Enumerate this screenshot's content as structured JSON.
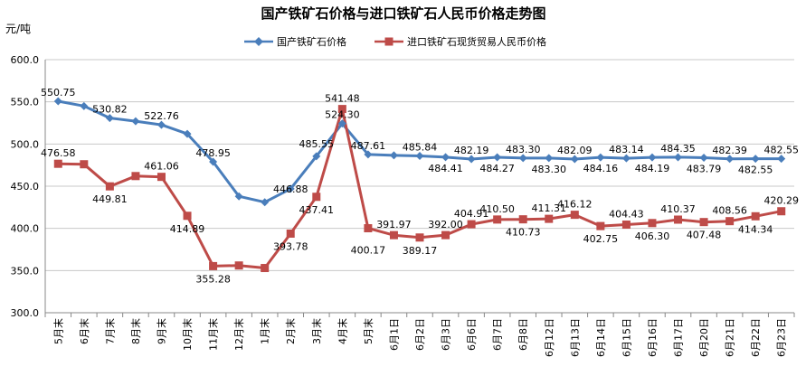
{
  "chart_data": {
    "type": "line",
    "title": "国产铁矿石价格与进口铁矿石人民币价格走势图",
    "ylabel": "元/吨",
    "xlabel": "",
    "ylim": [
      300,
      600
    ],
    "yticks": [
      "300.0",
      "350.0",
      "400.0",
      "450.0",
      "500.0",
      "550.0",
      "600.0"
    ],
    "grid": true,
    "legend_position": "top",
    "categories": [
      "5月末",
      "6月末",
      "7月末",
      "8月末",
      "9月末",
      "10月末",
      "11月末",
      "12月末",
      "1月末",
      "2月末",
      "3月末",
      "4月末",
      "5月末",
      "6月1日",
      "6月2日",
      "6月3日",
      "6月6日",
      "6月7日",
      "6月8日",
      "6月12日",
      "6月13日",
      "6月14日",
      "6月15日",
      "6月16日",
      "6月17日",
      "6月20日",
      "6月21日",
      "6月22日",
      "6月23日"
    ],
    "series": [
      {
        "name": "国产铁矿石价格",
        "color": "#4a7ebb",
        "marker": "diamond",
        "values": [
          550.75,
          545,
          530.82,
          527,
          522.76,
          512,
          478.95,
          438,
          431,
          446.88,
          485.55,
          524.3,
          487.61,
          486.5,
          485.84,
          484.41,
          482.19,
          484.27,
          483.3,
          483.3,
          482.09,
          484.16,
          483.14,
          484.19,
          484.35,
          483.79,
          482.39,
          482.55,
          482.55
        ],
        "labels": [
          "550.75",
          "",
          "530.82",
          "",
          "522.76",
          "",
          "478.95",
          "",
          "",
          "446.88",
          "485.55",
          "524.30",
          "487.61",
          "",
          "485.84",
          "484.41",
          "482.19",
          "484.27",
          "483.30",
          "483.30",
          "482.09",
          "484.16",
          "483.14",
          "484.19",
          "484.35",
          "483.79",
          "482.39",
          "482.55",
          "482.55"
        ]
      },
      {
        "name": "进口铁矿石现货贸易人民币价格",
        "color": "#be4b48",
        "marker": "square",
        "values": [
          476.58,
          476,
          449.81,
          462,
          461.06,
          414.89,
          355.28,
          356,
          353,
          393.78,
          437.41,
          541.48,
          400.17,
          391.97,
          389.17,
          392.0,
          404.91,
          410.5,
          410.73,
          411.31,
          416.12,
          402.75,
          404.43,
          406.3,
          410.37,
          407.48,
          408.56,
          414.34,
          420.29
        ],
        "labels": [
          "476.58",
          "",
          "449.81",
          "",
          "461.06",
          "414.89",
          "355.28",
          "",
          "",
          "393.78",
          "437.41",
          "541.48",
          "400.17",
          "391.97",
          "389.17",
          "392.00",
          "404.91",
          "410.50",
          "410.73",
          "411.31",
          "416.12",
          "402.75",
          "404.43",
          "406.30",
          "410.37",
          "407.48",
          "408.56",
          "414.34",
          "420.29"
        ]
      }
    ]
  }
}
